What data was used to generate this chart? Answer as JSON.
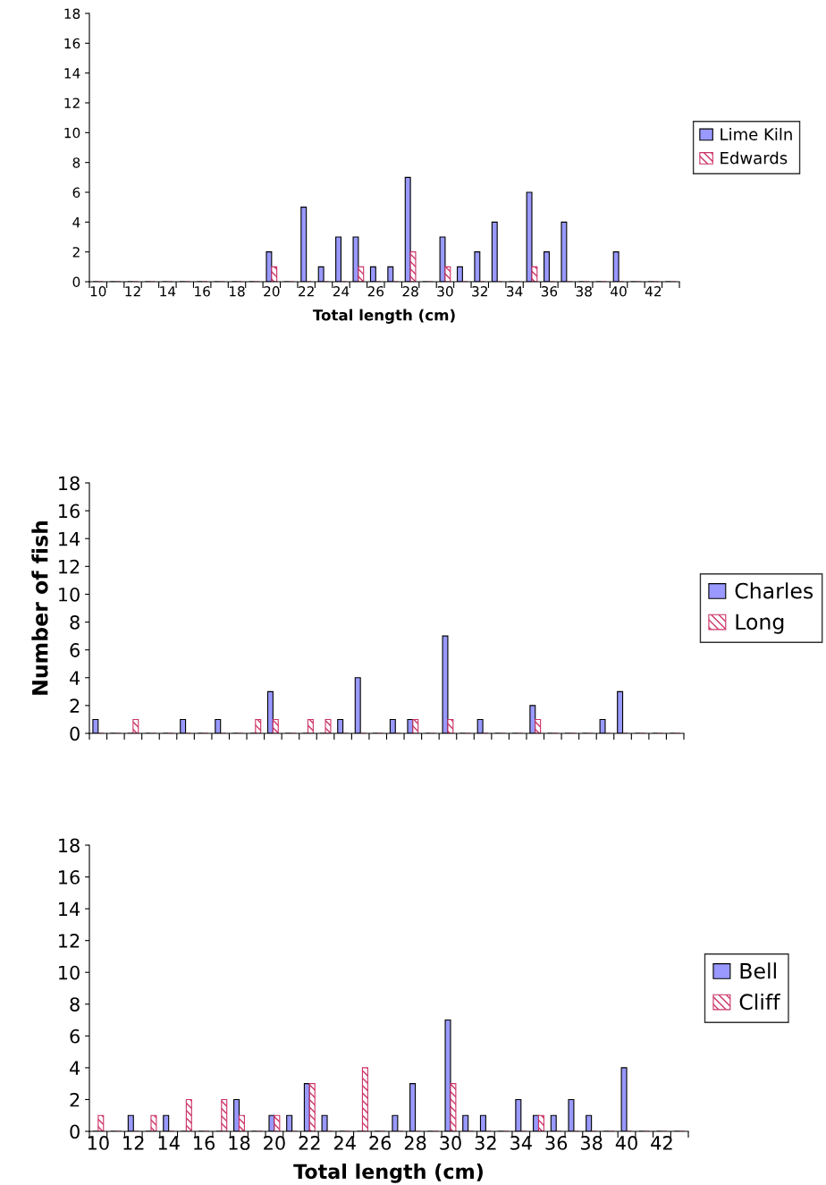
{
  "chart_data": [
    {
      "type": "bar",
      "xlabel": "Total length (cm)",
      "categories": [
        "10",
        null,
        "12",
        null,
        "14",
        null,
        "16",
        null,
        "18",
        null,
        "20",
        null,
        "22",
        null,
        "24",
        null,
        "26",
        null,
        "28",
        null,
        "30",
        null,
        "32",
        null,
        "34",
        null,
        "36",
        null,
        "38",
        null,
        "40",
        null,
        "42",
        null
      ],
      "series": [
        {
          "name": "Lime Kiln",
          "color": "#9999ff",
          "values": [
            0,
            0,
            0,
            0,
            0,
            0,
            0,
            0,
            0,
            0,
            2,
            0,
            5,
            1,
            3,
            3,
            1,
            1,
            7,
            0,
            3,
            1,
            2,
            4,
            0,
            6,
            2,
            4,
            0,
            0,
            2,
            0,
            0,
            0
          ]
        },
        {
          "name": "Edwards",
          "color": "#cc3366",
          "values": [
            0,
            0,
            0,
            0,
            0,
            0,
            0,
            0,
            0,
            0,
            1,
            0,
            0,
            0,
            0,
            1,
            0,
            0,
            2,
            0,
            1,
            0,
            0,
            0,
            0,
            1,
            0,
            0,
            0,
            0,
            0,
            0,
            0,
            0
          ]
        }
      ],
      "ylim": [
        0,
        18
      ],
      "yticks": [
        0,
        2,
        4,
        6,
        8,
        10,
        12,
        14,
        16,
        18
      ],
      "legend": "right",
      "grid": false
    },
    {
      "type": "bar",
      "ylabel": "Number of fish",
      "categories": [
        "10",
        null,
        "12",
        null,
        "14",
        null,
        "16",
        null,
        "18",
        null,
        "20",
        null,
        "22",
        null,
        "24",
        null,
        "26",
        null,
        "28",
        null,
        "30",
        null,
        "32",
        null,
        "34",
        null,
        "36",
        null,
        "38",
        null,
        "40",
        null,
        "42",
        null
      ],
      "series": [
        {
          "name": "Charles",
          "color": "#9999ff",
          "values": [
            1,
            0,
            0,
            0,
            0,
            1,
            0,
            1,
            0,
            0,
            3,
            0,
            0,
            0,
            1,
            4,
            0,
            1,
            1,
            0,
            7,
            0,
            1,
            0,
            0,
            2,
            0,
            0,
            0,
            1,
            3,
            0,
            0,
            0
          ]
        },
        {
          "name": "Long",
          "color": "#cc3366",
          "values": [
            0,
            0,
            1,
            0,
            0,
            0,
            0,
            0,
            0,
            1,
            1,
            0,
            1,
            1,
            0,
            0,
            0,
            0,
            1,
            0,
            1,
            0,
            0,
            0,
            0,
            1,
            0,
            0,
            0,
            0,
            0,
            0,
            0,
            0
          ]
        }
      ],
      "ylim": [
        0,
        18
      ],
      "yticks": [
        0,
        2,
        4,
        6,
        8,
        10,
        12,
        14,
        16,
        18
      ],
      "legend": "right",
      "grid": false,
      "tick_labels": "y"
    },
    {
      "type": "bar",
      "xlabel": "Total length (cm)",
      "categories": [
        "10",
        null,
        "12",
        null,
        "14",
        null,
        "16",
        null,
        "18",
        null,
        "20",
        null,
        "22",
        null,
        "24",
        null,
        "26",
        null,
        "28",
        null,
        "30",
        null,
        "32",
        null,
        "34",
        null,
        "36",
        null,
        "38",
        null,
        "40",
        null,
        "42",
        null
      ],
      "series": [
        {
          "name": "Bell",
          "color": "#9999ff",
          "values": [
            0,
            0,
            1,
            0,
            1,
            0,
            0,
            0,
            2,
            0,
            1,
            1,
            3,
            1,
            0,
            0,
            0,
            1,
            3,
            0,
            7,
            1,
            1,
            0,
            2,
            1,
            1,
            2,
            1,
            0,
            4,
            0,
            0,
            0
          ]
        },
        {
          "name": "Cliff",
          "color": "#cc3366",
          "values": [
            1,
            0,
            0,
            1,
            0,
            2,
            0,
            2,
            1,
            0,
            1,
            0,
            3,
            0,
            0,
            4,
            0,
            0,
            0,
            0,
            3,
            0,
            0,
            0,
            0,
            1,
            0,
            0,
            0,
            0,
            0,
            0,
            0,
            0
          ]
        }
      ],
      "ylim": [
        0,
        18
      ],
      "yticks": [
        0,
        2,
        4,
        6,
        8,
        10,
        12,
        14,
        16,
        18
      ],
      "legend": "right",
      "grid": false
    }
  ]
}
